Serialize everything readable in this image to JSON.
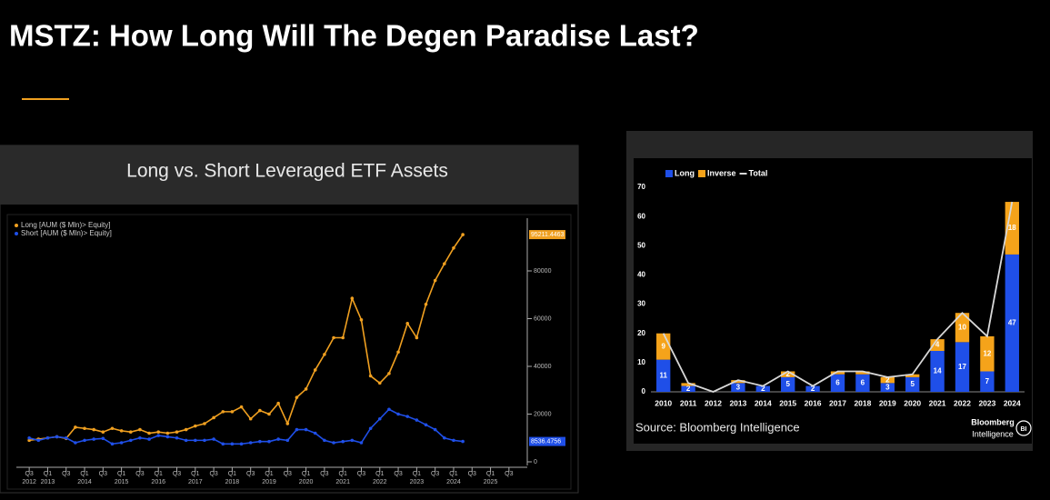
{
  "header": {
    "title": "MSTZ: How Long Will The Degen Paradise Last?"
  },
  "chart_data": [
    {
      "type": "line",
      "title": "Long vs. Short Leveraged ETF Assets",
      "x": [
        2012.5,
        2012.75,
        2013,
        2013.25,
        2013.5,
        2013.75,
        2014,
        2014.25,
        2014.5,
        2014.75,
        2015,
        2015.25,
        2015.5,
        2015.75,
        2016,
        2016.25,
        2016.5,
        2016.75,
        2017,
        2017.25,
        2017.5,
        2017.75,
        2018,
        2018.25,
        2018.5,
        2018.75,
        2019,
        2019.25,
        2019.5,
        2019.75,
        2020,
        2020.25,
        2020.5,
        2020.75,
        2021,
        2021.25,
        2021.5,
        2021.75,
        2022,
        2022.25,
        2022.5,
        2022.75,
        2023,
        2023.25,
        2023.5,
        2023.75,
        2024,
        2024.25
      ],
      "series": [
        {
          "name": "Long [AUM ($ Mln)> Equity]",
          "color": "#f0a020",
          "values": [
            9000,
            9500,
            10000,
            10500,
            9800,
            14500,
            14000,
            13500,
            12500,
            14000,
            13000,
            12500,
            13500,
            12000,
            12500,
            12000,
            12500,
            13500,
            15000,
            16000,
            18500,
            21000,
            21000,
            23000,
            18000,
            21500,
            20000,
            24500,
            16000,
            27000,
            30500,
            38500,
            45000,
            52000,
            52000,
            68500,
            59500,
            36000,
            33000,
            37000,
            46000,
            58000,
            52000,
            66000,
            76000,
            83000,
            89600,
            95211.4463
          ]
        },
        {
          "name": "Short [AUM ($ Mln)> Equity]",
          "color": "#1f4fe8",
          "values": [
            10000,
            9000,
            10000,
            10500,
            10000,
            8000,
            9000,
            9500,
            9800,
            7500,
            8000,
            9000,
            10000,
            9500,
            11000,
            10500,
            10000,
            9000,
            9000,
            9000,
            9500,
            7500,
            7500,
            7500,
            8000,
            8500,
            8500,
            9500,
            9000,
            13500,
            13500,
            12000,
            9000,
            8000,
            8500,
            9000,
            8000,
            14000,
            18000,
            22000,
            20000,
            19000,
            17500,
            15500,
            13500,
            10000,
            9000,
            8536.4756
          ]
        }
      ],
      "xlim": [
        2012.25,
        2025.75
      ],
      "xticks": [
        {
          "value": 2012.5,
          "label": "Q3",
          "sublabel": "2012"
        },
        {
          "value": 2013,
          "label": "Q1",
          "sublabel": "2013"
        },
        {
          "value": 2013.5,
          "label": "Q3"
        },
        {
          "value": 2014,
          "label": "Q1",
          "sublabel": "2014"
        },
        {
          "value": 2014.5,
          "label": "Q3"
        },
        {
          "value": 2015,
          "label": "Q1",
          "sublabel": "2015"
        },
        {
          "value": 2015.5,
          "label": "Q3"
        },
        {
          "value": 2016,
          "label": "Q1",
          "sublabel": "2016"
        },
        {
          "value": 2016.5,
          "label": "Q3"
        },
        {
          "value": 2017,
          "label": "Q1",
          "sublabel": "2017"
        },
        {
          "value": 2017.5,
          "label": "Q3"
        },
        {
          "value": 2018,
          "label": "Q1",
          "sublabel": "2018"
        },
        {
          "value": 2018.5,
          "label": "Q3"
        },
        {
          "value": 2019,
          "label": "Q1",
          "sublabel": "2019"
        },
        {
          "value": 2019.5,
          "label": "Q3"
        },
        {
          "value": 2020,
          "label": "Q1",
          "sublabel": "2020"
        },
        {
          "value": 2020.5,
          "label": "Q3"
        },
        {
          "value": 2021,
          "label": "Q1",
          "sublabel": "2021"
        },
        {
          "value": 2021.5,
          "label": "Q3"
        },
        {
          "value": 2022,
          "label": "Q1",
          "sublabel": "2022"
        },
        {
          "value": 2022.5,
          "label": "Q3"
        },
        {
          "value": 2023,
          "label": "Q1",
          "sublabel": "2023"
        },
        {
          "value": 2023.5,
          "label": "Q3"
        },
        {
          "value": 2024,
          "label": "Q1",
          "sublabel": "2024"
        },
        {
          "value": 2024.5,
          "label": "Q3"
        },
        {
          "value": 2025,
          "label": "Q1",
          "sublabel": "2025"
        },
        {
          "value": 2025.5,
          "label": "Q3"
        }
      ],
      "ylim": [
        0,
        100000
      ],
      "yticks": [
        0,
        20000,
        40000,
        60000,
        80000
      ]
    },
    {
      "type": "bar",
      "stacked": true,
      "categories": [
        "2010",
        "2011",
        "2012",
        "2013",
        "2014",
        "2015",
        "2016",
        "2017",
        "2018",
        "2019",
        "2020",
        "2021",
        "2022",
        "2023",
        "2024"
      ],
      "series": [
        {
          "name": "Long",
          "color": "#1f4fe8",
          "values": [
            11,
            2,
            0,
            3,
            2,
            5,
            2,
            6,
            6,
            3,
            5,
            14,
            17,
            7,
            47
          ]
        },
        {
          "name": "Inverse",
          "color": "#f5a31a",
          "values": [
            9,
            1,
            0,
            1,
            0,
            2,
            0,
            1,
            1,
            2,
            1,
            4,
            10,
            12,
            18
          ]
        },
        {
          "name": "Total",
          "color": "#d8d8d8",
          "type": "line",
          "values": [
            20,
            3,
            0,
            4,
            2,
            7,
            2,
            7,
            7,
            5,
            6,
            18,
            27,
            19,
            65
          ]
        }
      ],
      "ylim": [
        0,
        70
      ],
      "yticks": [
        0,
        10,
        20,
        30,
        40,
        50,
        60,
        70
      ],
      "source": "Source: Bloomberg Intelligence",
      "logo": {
        "brand": "Bloomberg",
        "text": "Intelligence",
        "badge": "BI"
      }
    }
  ]
}
